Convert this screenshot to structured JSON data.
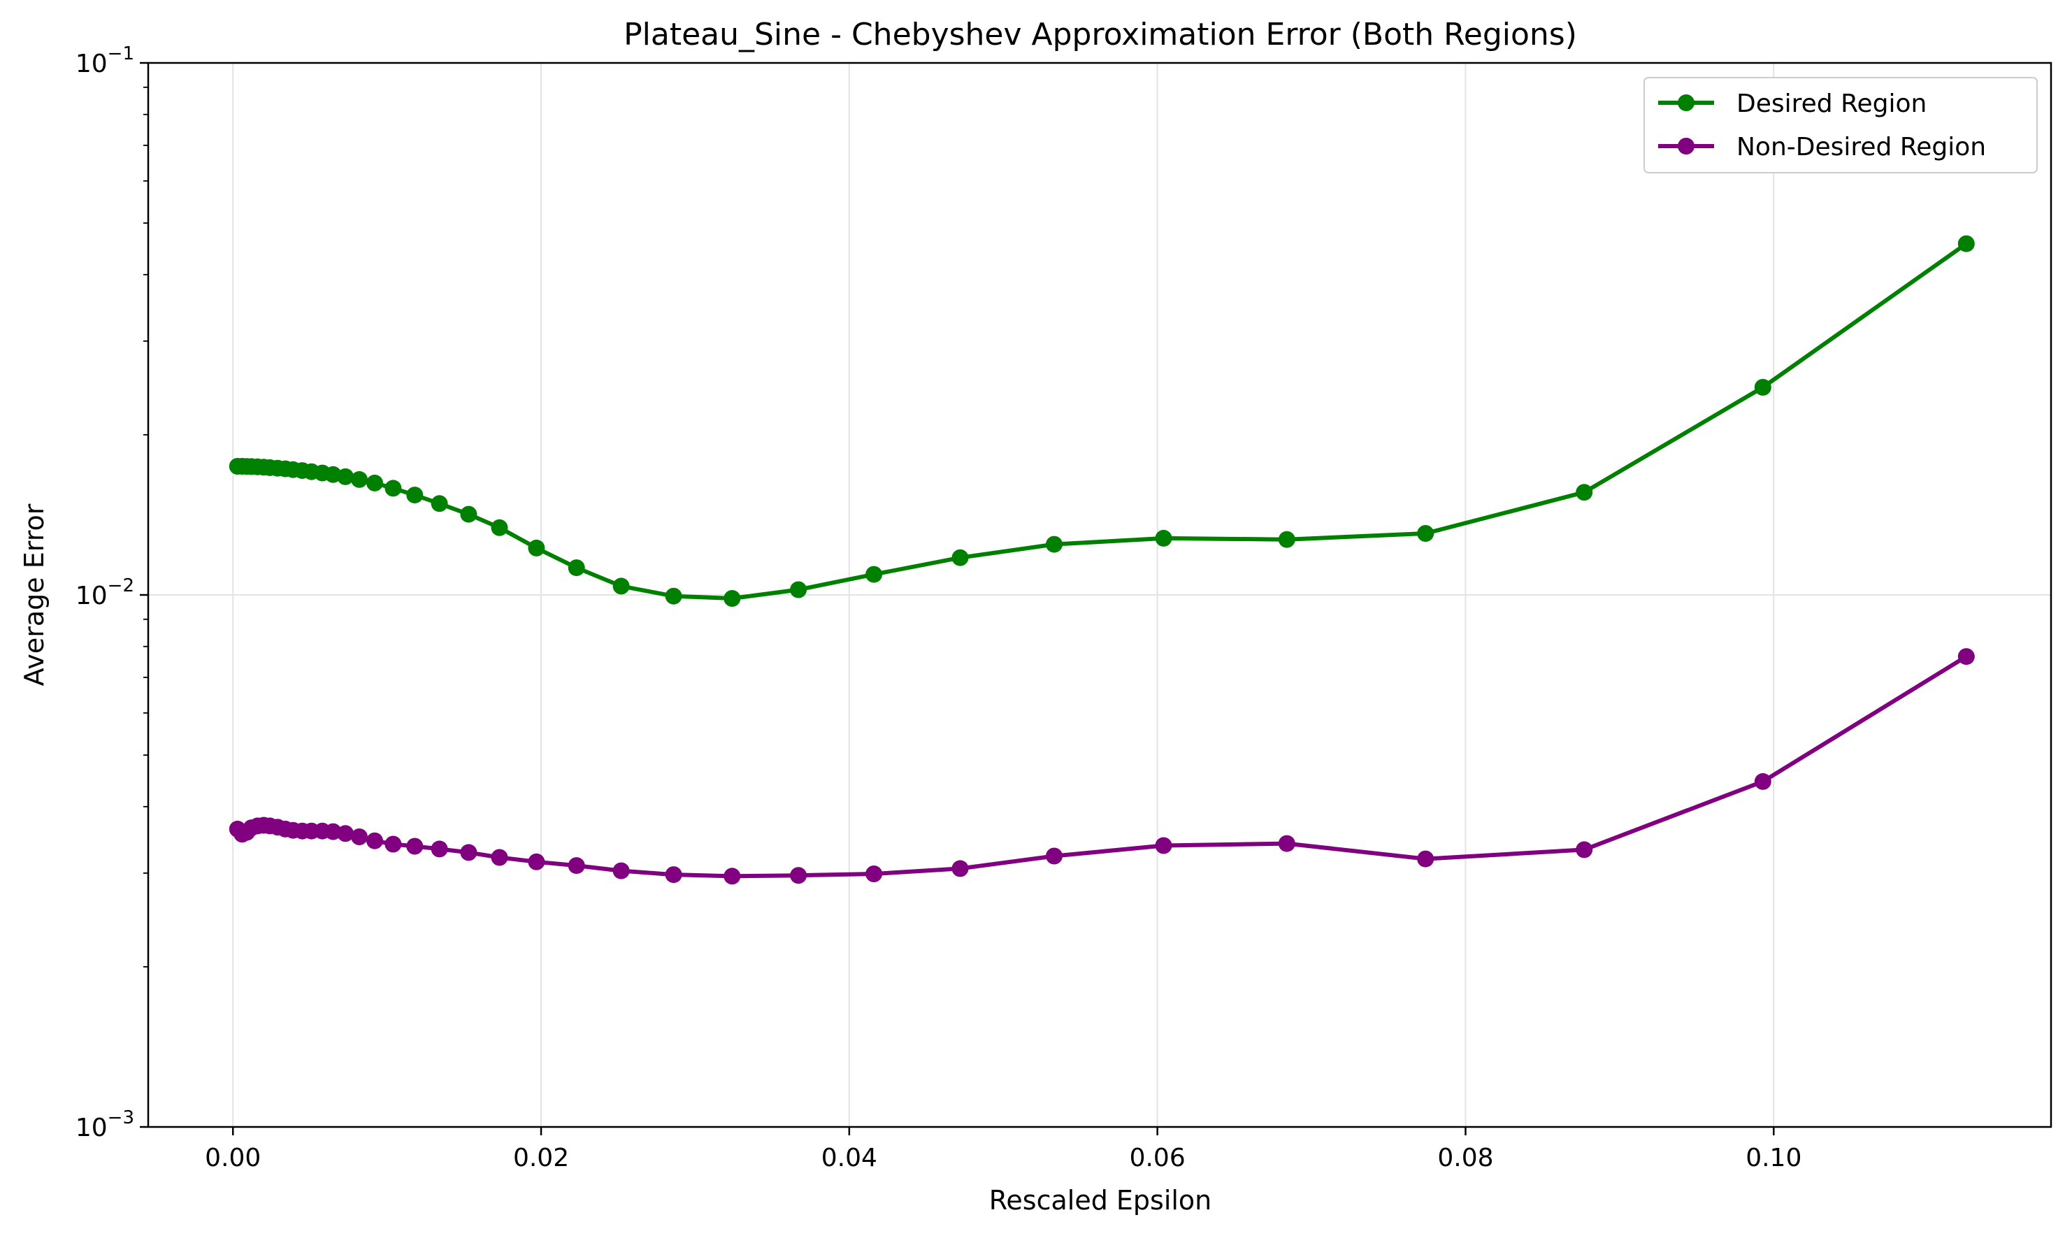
{
  "chart_data": {
    "type": "line",
    "title": "Plateau_Sine - Chebyshev Approximation Error (Both Regions)",
    "xlabel": "Rescaled Epsilon",
    "ylabel": "Average Error",
    "xlim": [
      -0.0055,
      0.118
    ],
    "ylim": [
      0.001,
      0.1
    ],
    "yscale": "log",
    "grid": true,
    "legend_position": "top-right",
    "x_ticks": [
      0.0,
      0.02,
      0.04,
      0.06,
      0.08,
      0.1
    ],
    "x_tick_labels": [
      "0.00",
      "0.02",
      "0.04",
      "0.06",
      "0.08",
      "0.10"
    ],
    "y_ticks": [
      0.001,
      0.01,
      0.1
    ],
    "y_tick_labels": [
      {
        "base": "10",
        "exp": "−3"
      },
      {
        "base": "10",
        "exp": "−2"
      },
      {
        "base": "10",
        "exp": "−1"
      }
    ],
    "x": [
      0.0003,
      0.0006,
      0.0009,
      0.0012,
      0.0016,
      0.002,
      0.0024,
      0.0029,
      0.0034,
      0.0039,
      0.0045,
      0.0051,
      0.0058,
      0.0065,
      0.0073,
      0.0082,
      0.0092,
      0.0104,
      0.0118,
      0.0134,
      0.0153,
      0.0173,
      0.0197,
      0.0223,
      0.0252,
      0.0286,
      0.0324,
      0.0367,
      0.0416,
      0.0472,
      0.0533,
      0.0604,
      0.0684,
      0.0774,
      0.0877,
      0.0993,
      0.1125
    ],
    "series": [
      {
        "name": "Desired Region",
        "color": "#008000",
        "values": [
          0.01745,
          0.01745,
          0.01744,
          0.01743,
          0.01741,
          0.01738,
          0.01735,
          0.01731,
          0.01726,
          0.0172,
          0.01713,
          0.01705,
          0.01695,
          0.01684,
          0.01668,
          0.01648,
          0.01623,
          0.01587,
          0.01541,
          0.01485,
          0.01418,
          0.01338,
          0.01225,
          0.01125,
          0.01039,
          0.00995,
          0.00985,
          0.01023,
          0.01093,
          0.01175,
          0.01245,
          0.01278,
          0.01271,
          0.01305,
          0.01559,
          0.02456,
          0.04573
        ]
      },
      {
        "name": "Non-Desired Region",
        "color": "#800080",
        "values": [
          0.00363,
          0.00355,
          0.00358,
          0.00365,
          0.00368,
          0.00369,
          0.00368,
          0.00366,
          0.00363,
          0.00361,
          0.0036,
          0.0036,
          0.0036,
          0.00359,
          0.00356,
          0.00351,
          0.00345,
          0.0034,
          0.00337,
          0.00333,
          0.00328,
          0.00321,
          0.00315,
          0.0031,
          0.00303,
          0.00298,
          0.00296,
          0.00297,
          0.00299,
          0.00306,
          0.00323,
          0.00338,
          0.00341,
          0.00319,
          0.00332,
          0.00446,
          0.00766
        ]
      }
    ]
  }
}
